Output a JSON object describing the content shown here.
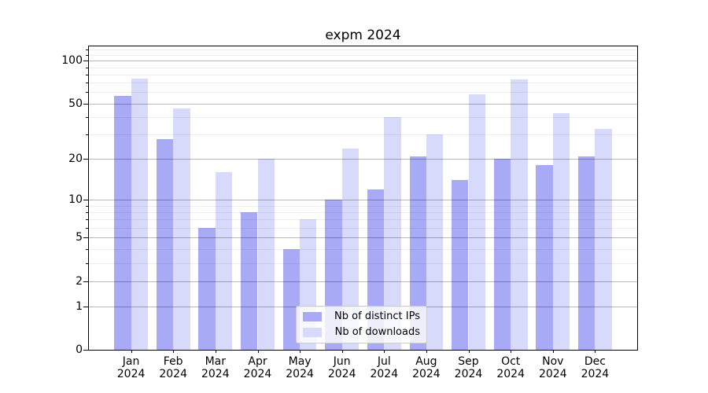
{
  "title": "expm 2024",
  "legend": {
    "entries": [
      {
        "label": "Nb of distinct IPs",
        "color": "#a8aaf6"
      },
      {
        "label": "Nb of downloads",
        "color": "#d8dafb"
      }
    ],
    "position": "lower center"
  },
  "y_axis": {
    "tick_labels": [
      "100",
      "50",
      "20",
      "10",
      "5",
      "2",
      "1",
      "0"
    ]
  },
  "chart_data": {
    "type": "bar",
    "title": "expm 2024",
    "categories": [
      "Jan 2024",
      "Feb 2024",
      "Mar 2024",
      "Apr 2024",
      "May 2024",
      "Jun 2024",
      "Jul 2024",
      "Aug 2024",
      "Sep 2024",
      "Oct 2024",
      "Nov 2024",
      "Dec 2024"
    ],
    "x_tick_months": [
      "Jan",
      "Feb",
      "Mar",
      "Apr",
      "May",
      "Jun",
      "Jul",
      "Aug",
      "Sep",
      "Oct",
      "Nov",
      "Dec"
    ],
    "x_tick_year": "2024",
    "series": [
      {
        "name": "Nb of distinct IPs",
        "color": "#a8aaf6",
        "values": [
          57,
          28,
          6,
          8,
          4,
          10,
          12,
          21,
          14,
          20,
          18,
          21
        ]
      },
      {
        "name": "Nb of downloads",
        "color": "#d8dafb",
        "values": [
          75,
          46,
          16,
          20,
          7,
          24,
          40,
          30,
          58,
          74,
          43,
          33
        ]
      }
    ],
    "y_scale": "log10(value+1)",
    "y_major_ticks": [
      0,
      1,
      2,
      5,
      10,
      20,
      50,
      100
    ],
    "y_minor_ticks": [
      3,
      4,
      6,
      7,
      8,
      9,
      30,
      40,
      60,
      70,
      80,
      90,
      110,
      120
    ],
    "ylim": [
      0,
      126
    ],
    "xlim": [
      -1,
      12
    ],
    "bar_width_units": 0.4,
    "grid": true,
    "legend_position": "lower center"
  }
}
